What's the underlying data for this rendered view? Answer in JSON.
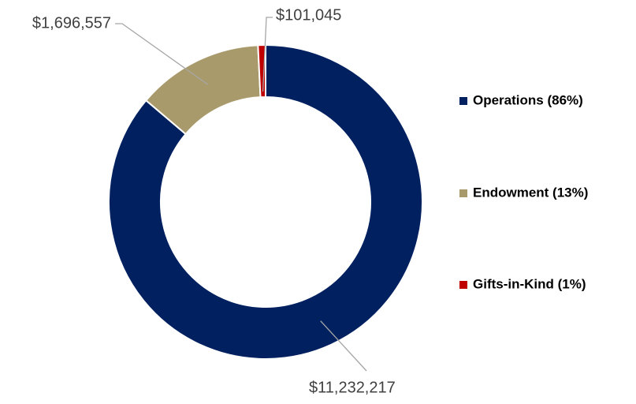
{
  "chart_data": {
    "type": "pie",
    "donut": true,
    "categories": [
      "Operations (86%)",
      "Endowment (13%)",
      "Gifts-in-Kind (1%)"
    ],
    "values": [
      11232217,
      1696557,
      101045
    ],
    "value_labels": [
      "$11,232,217",
      "$1,696,557",
      "$101,045"
    ],
    "colors": [
      "#002060",
      "#a99a6b",
      "#c00000"
    ],
    "legend": "right"
  }
}
